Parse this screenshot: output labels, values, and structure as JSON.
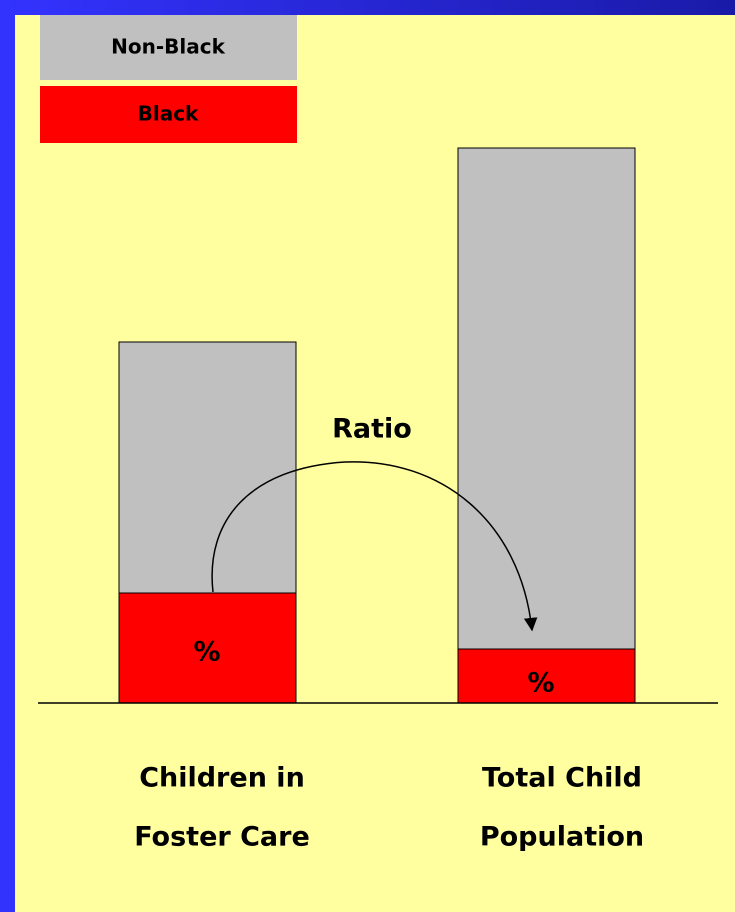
{
  "legend": [
    "Non-Black",
    "Black"
  ],
  "annotation": "Ratio",
  "bars": [
    {
      "label": [
        "Children in",
        "Foster Care"
      ],
      "segment_label": "%"
    },
    {
      "label": [
        "Total Child",
        "Population"
      ],
      "segment_label": "%"
    }
  ]
}
